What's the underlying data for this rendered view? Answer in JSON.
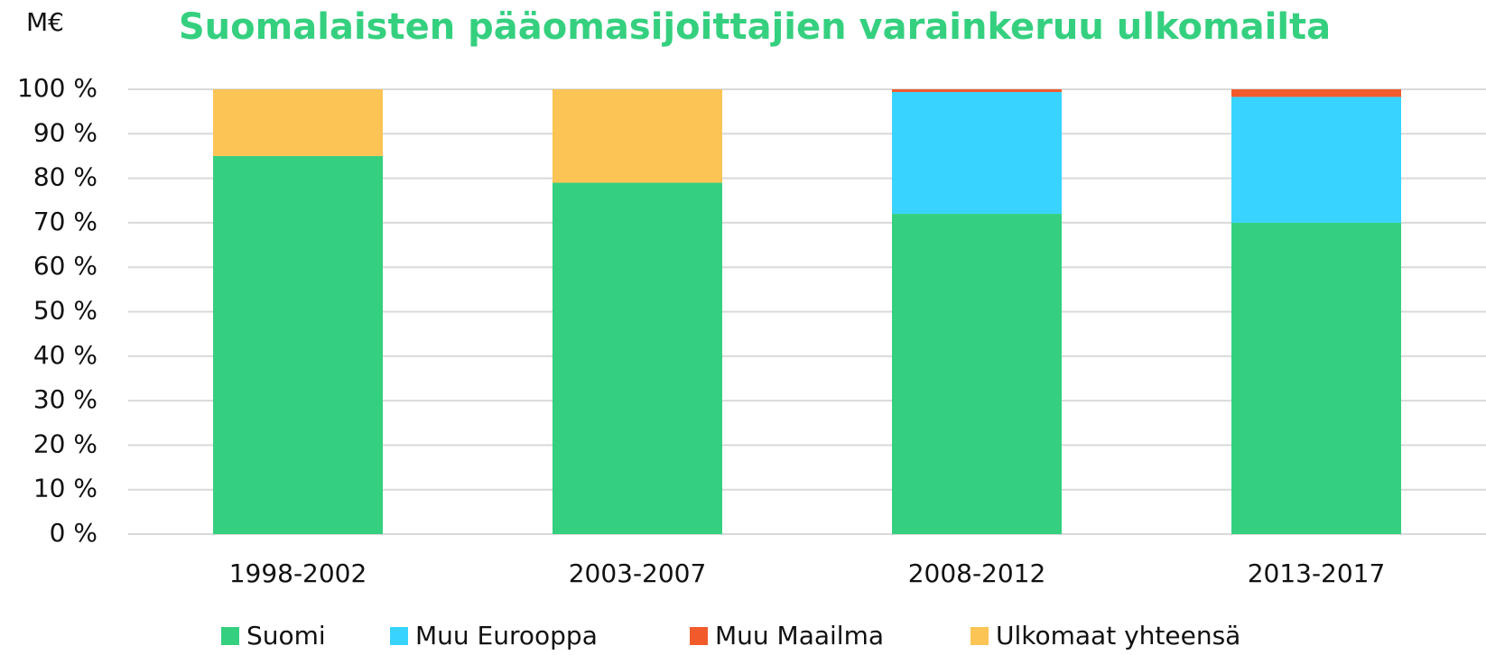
{
  "chart_data": {
    "type": "stacked_bar",
    "title": "Suomalaisten pääomasijoittajien varainkeruu ulkomailta",
    "y_label": "M€",
    "categories": [
      "1998-2002",
      "2003-2007",
      "2008-2012",
      "2013-2017"
    ],
    "series": [
      {
        "name": "Suomi",
        "color": "#35d07f",
        "values": [
          85,
          79,
          72,
          70
        ]
      },
      {
        "name": "Muu Eurooppa",
        "color": "#38d3ff",
        "values": [
          0,
          0,
          27.4,
          28.3
        ]
      },
      {
        "name": "Muu Maailma",
        "color": "#f15a2b",
        "values": [
          0,
          0,
          0.6,
          1.7
        ]
      },
      {
        "name": "Ulkomaat yhteensä",
        "color": "#fcc454",
        "values": [
          15,
          21,
          0,
          0
        ]
      }
    ],
    "ylim": [
      0,
      100
    ],
    "yticks": [
      {
        "value": 0,
        "label": "0 %"
      },
      {
        "value": 10,
        "label": "10 %"
      },
      {
        "value": 20,
        "label": "20 %"
      },
      {
        "value": 30,
        "label": "30 %"
      },
      {
        "value": 40,
        "label": "40 %"
      },
      {
        "value": 50,
        "label": "50 %"
      },
      {
        "value": 60,
        "label": "60 %"
      },
      {
        "value": 70,
        "label": "70 %"
      },
      {
        "value": 80,
        "label": "80 %"
      },
      {
        "value": 90,
        "label": "90 %"
      },
      {
        "value": 100,
        "label": "100 %"
      }
    ],
    "grid": true,
    "legend": "bottom"
  }
}
